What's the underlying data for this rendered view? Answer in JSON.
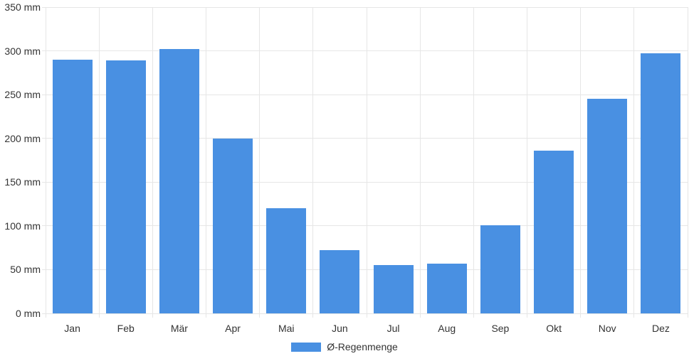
{
  "chart_data": {
    "type": "bar",
    "categories": [
      "Jan",
      "Feb",
      "Mär",
      "Apr",
      "Mai",
      "Jun",
      "Jul",
      "Aug",
      "Sep",
      "Okt",
      "Nov",
      "Dez"
    ],
    "series": [
      {
        "name": "Ø-Regenmenge",
        "values": [
          290,
          289,
          302,
          200,
          120,
          72,
          55,
          57,
          101,
          186,
          245,
          297
        ]
      }
    ],
    "unit": "mm",
    "title": "",
    "xlabel": "",
    "ylabel": "",
    "ylim": [
      0,
      350
    ],
    "y_ticks": [
      {
        "value": 0,
        "label": "0 mm"
      },
      {
        "value": 50,
        "label": "50 mm"
      },
      {
        "value": 100,
        "label": "100 mm"
      },
      {
        "value": 150,
        "label": "150 mm"
      },
      {
        "value": 200,
        "label": "200 mm"
      },
      {
        "value": 250,
        "label": "250 mm"
      },
      {
        "value": 300,
        "label": "300 mm"
      },
      {
        "value": 350,
        "label": "350 mm"
      }
    ],
    "grid": true,
    "legend_position": "bottom",
    "colors": {
      "bar": "#4990e2",
      "grid": "#e6e6e6",
      "text": "#333333",
      "background": "#ffffff"
    }
  },
  "legend": {
    "items": [
      {
        "label": "Ø-Regenmenge",
        "color": "#4990e2"
      }
    ]
  }
}
